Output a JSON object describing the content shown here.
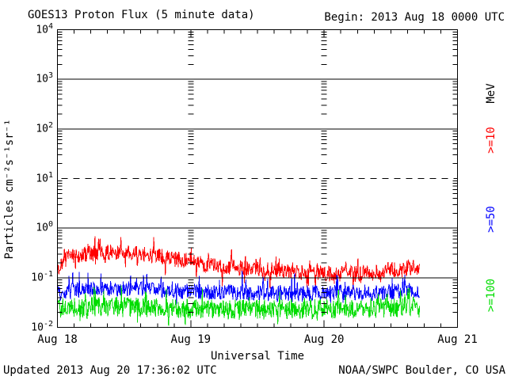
{
  "footer": {
    "updated": "Updated 2013 Aug 20 17:36:02 UTC",
    "credit": "NOAA/SWPC Boulder, CO USA"
  },
  "chart_data": {
    "type": "line",
    "title": "GOES13 Proton Flux (5 minute data)",
    "begin_label": "Begin: 2013 Aug 18 0000 UTC",
    "xlabel": "Universal Time",
    "ylabel": "Particles cm⁻²s⁻¹sr⁻¹",
    "units_label": "MeV",
    "x_tick_labels": [
      "Aug 18",
      "Aug 19",
      "Aug 20",
      "Aug 21"
    ],
    "y_tick_exponents": [
      4,
      3,
      2,
      1,
      0,
      -1,
      -2
    ],
    "y_log_range": [
      -2,
      4
    ],
    "x_range_hours": [
      0,
      72
    ],
    "x_minor_tick_hours": 3,
    "data_end_hour": 65.25,
    "sample_minutes": 5,
    "grid": {
      "solid_decade_exponents": [
        3,
        2,
        0,
        -1
      ],
      "dashed_decade_exponent": 1,
      "day_boundary_hours": [
        24,
        48
      ],
      "axis_color": "#000000"
    },
    "series": [
      {
        "name": "Proton flux >=10 MeV",
        "label": ">=10",
        "color": "#ff0000",
        "seed": 90210,
        "noise_dex": 0.16,
        "up_spike_prob": 0.07,
        "up_spike_dex": 0.22,
        "down_spike_prob": 0.05,
        "down_spike_dex": 0.35,
        "clip_min": 0.05,
        "clip_max": 0.75,
        "anchors_hour_flux": [
          [
            0,
            0.14
          ],
          [
            1,
            0.2
          ],
          [
            2,
            0.26
          ],
          [
            4,
            0.28
          ],
          [
            6,
            0.3
          ],
          [
            8,
            0.32
          ],
          [
            10,
            0.33
          ],
          [
            12,
            0.32
          ],
          [
            14,
            0.33
          ],
          [
            16,
            0.3
          ],
          [
            18,
            0.27
          ],
          [
            20,
            0.26
          ],
          [
            22,
            0.23
          ],
          [
            24,
            0.21
          ],
          [
            26,
            0.19
          ],
          [
            28,
            0.18
          ],
          [
            30,
            0.17
          ],
          [
            32,
            0.16
          ],
          [
            34,
            0.155
          ],
          [
            36,
            0.15
          ],
          [
            38,
            0.145
          ],
          [
            40,
            0.14
          ],
          [
            42,
            0.135
          ],
          [
            44,
            0.13
          ],
          [
            46,
            0.125
          ],
          [
            48,
            0.12
          ],
          [
            50,
            0.12
          ],
          [
            52,
            0.12
          ],
          [
            54,
            0.12
          ],
          [
            56,
            0.125
          ],
          [
            58,
            0.13
          ],
          [
            60,
            0.14
          ],
          [
            62,
            0.15
          ],
          [
            64,
            0.16
          ],
          [
            65.25,
            0.17
          ]
        ]
      },
      {
        "name": "Proton flux >=50 MeV",
        "label": ">=50",
        "color": "#0000ff",
        "seed": 4242,
        "noise_dex": 0.16,
        "up_spike_prob": 0.07,
        "up_spike_dex": 0.3,
        "down_spike_prob": 0.02,
        "down_spike_dex": 0.15,
        "clip_min": 0.028,
        "clip_max": 0.2,
        "anchors_hour_flux": [
          [
            0,
            0.048
          ],
          [
            4,
            0.055
          ],
          [
            8,
            0.06
          ],
          [
            12,
            0.06
          ],
          [
            16,
            0.058
          ],
          [
            20,
            0.055
          ],
          [
            24,
            0.053
          ],
          [
            28,
            0.05
          ],
          [
            32,
            0.05
          ],
          [
            36,
            0.05
          ],
          [
            40,
            0.048
          ],
          [
            44,
            0.048
          ],
          [
            48,
            0.05
          ],
          [
            52,
            0.05
          ],
          [
            56,
            0.05
          ],
          [
            60,
            0.052
          ],
          [
            64,
            0.055
          ],
          [
            65.25,
            0.055
          ]
        ]
      },
      {
        "name": "Proton flux >=100 MeV",
        "label": ">=100",
        "color": "#00dd00",
        "seed": 777,
        "noise_dex": 0.2,
        "up_spike_prob": 0.06,
        "up_spike_dex": 0.28,
        "down_spike_prob": 0.05,
        "down_spike_dex": 0.2,
        "clip_min": 0.0101,
        "clip_max": 0.09,
        "anchors_hour_flux": [
          [
            0,
            0.024
          ],
          [
            6,
            0.026
          ],
          [
            12,
            0.026
          ],
          [
            18,
            0.025
          ],
          [
            24,
            0.024
          ],
          [
            30,
            0.023
          ],
          [
            36,
            0.023
          ],
          [
            42,
            0.023
          ],
          [
            48,
            0.024
          ],
          [
            54,
            0.024
          ],
          [
            60,
            0.025
          ],
          [
            65.25,
            0.026
          ]
        ]
      }
    ]
  }
}
